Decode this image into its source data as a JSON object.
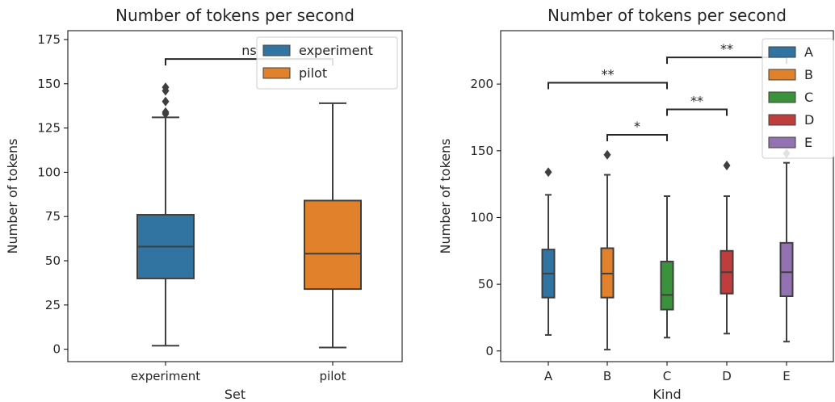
{
  "chart_data": [
    {
      "type": "box",
      "title": "Number of tokens per second",
      "xlabel": "Set",
      "ylabel": "Number of tokens",
      "categories": [
        "experiment",
        "pilot"
      ],
      "ylim": [
        -7,
        180
      ],
      "yticks": [
        0,
        25,
        50,
        75,
        100,
        125,
        150,
        175
      ],
      "grid": false,
      "legend_position": "top-right",
      "series": [
        {
          "name": "experiment",
          "color": "#3274a1",
          "category": "experiment",
          "whisker_low": 2,
          "q1": 40,
          "median": 58,
          "q3": 76,
          "whisker_high": 131,
          "outliers": [
            133,
            134,
            140,
            146,
            148
          ]
        },
        {
          "name": "pilot",
          "color": "#e1812c",
          "category": "pilot",
          "whisker_low": 1,
          "q1": 34,
          "median": 54,
          "q3": 84,
          "whisker_high": 139,
          "outliers": []
        }
      ],
      "annotations": [
        {
          "from": "experiment",
          "to": "pilot",
          "level": 164,
          "text": "ns"
        }
      ]
    },
    {
      "type": "box",
      "title": "Number of tokens per second",
      "xlabel": "Kind",
      "ylabel": "Number of tokens",
      "categories": [
        "A",
        "B",
        "C",
        "D",
        "E"
      ],
      "ylim": [
        -8,
        240
      ],
      "yticks": [
        0,
        50,
        100,
        150,
        200
      ],
      "grid": false,
      "legend_position": "top-right",
      "series": [
        {
          "name": "A",
          "color": "#3274a1",
          "category": "A",
          "whisker_low": 12,
          "q1": 40,
          "median": 58,
          "q3": 76,
          "whisker_high": 117,
          "outliers": [
            134
          ]
        },
        {
          "name": "B",
          "color": "#e1812c",
          "category": "B",
          "whisker_low": 1,
          "q1": 40,
          "median": 58,
          "q3": 77,
          "whisker_high": 132,
          "outliers": [
            147
          ]
        },
        {
          "name": "C",
          "color": "#3a923a",
          "category": "C",
          "whisker_low": 10,
          "q1": 31,
          "median": 42,
          "q3": 67,
          "whisker_high": 116,
          "outliers": []
        },
        {
          "name": "D",
          "color": "#c03d3e",
          "category": "D",
          "whisker_low": 13,
          "q1": 43,
          "median": 59,
          "q3": 75,
          "whisker_high": 116,
          "outliers": [
            139
          ]
        },
        {
          "name": "E",
          "color": "#9372b2",
          "category": "E",
          "whisker_low": 7,
          "q1": 41,
          "median": 59,
          "q3": 81,
          "whisker_high": 141,
          "outliers": [
            148
          ]
        }
      ],
      "annotations": [
        {
          "from": "B",
          "to": "C",
          "level": 162,
          "text": "*"
        },
        {
          "from": "C",
          "to": "D",
          "level": 181,
          "text": "**"
        },
        {
          "from": "A",
          "to": "C",
          "level": 201,
          "text": "**"
        },
        {
          "from": "C",
          "to": "E",
          "level": 220,
          "text": "**"
        }
      ]
    }
  ]
}
